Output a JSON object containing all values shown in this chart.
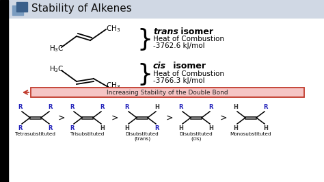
{
  "bg_color": "#ffffff",
  "header_bg": "#d0d8e4",
  "header_text": "Stability of Alkenes",
  "icon_color1": "#3a5f8a",
  "icon_color2": "#7a9cc0",
  "trans_label_italic": "trans",
  "trans_label_normal": " isomer",
  "trans_line2": "Heat of Combustion",
  "trans_line3": "-3762.6 kJ/mol",
  "cis_label_italic": "cis",
  "cis_label_normal": " isomer",
  "cis_line2": "Heat of Combustion",
  "cis_line3": "-3766.3 kJ/mol",
  "arrow_text": "Increasing Stability of the Double Bond",
  "arrow_edge_color": "#c0392b",
  "arrow_face_color": "#f5c5c5",
  "categories": [
    "Tetrasubstituted",
    "Trisubstituted",
    "Disubstituted\n(trans)",
    "Disubstituted\n(cis)",
    "Monosubstituted"
  ],
  "blue": "#2222bb",
  "black": "#111111",
  "gray_bg": "#e8e8e8"
}
